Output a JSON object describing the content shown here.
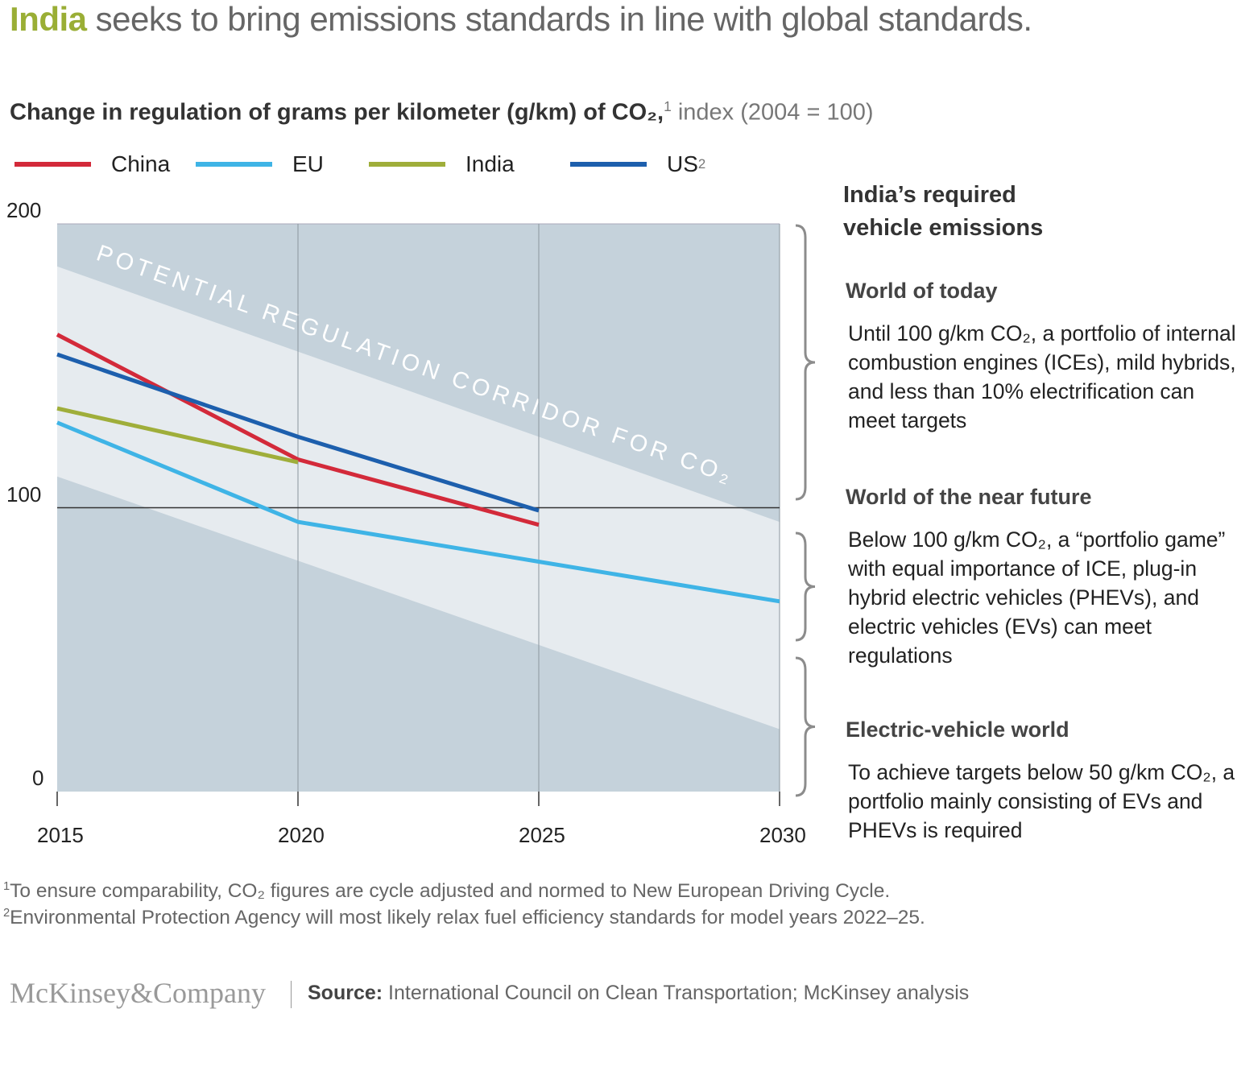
{
  "header": {
    "title_highlight": "India",
    "title_rest": " seeks to bring emissions standards in line with global standards.",
    "subtitle_bold": "Change in regulation of grams per kilometer (g/km) of CO₂,",
    "subtitle_sup": "1",
    "subtitle_light": " index (2004 = 100)"
  },
  "colors": {
    "china": "#d32a3a",
    "eu": "#3fb4e6",
    "india": "#9fae3a",
    "us": "#1d5fad",
    "band_dark": "#c5d2db",
    "band_light": "#e6ebef",
    "highlight": "#9aae35"
  },
  "chart_data": {
    "type": "line",
    "x": [
      2015,
      2020,
      2025,
      2030
    ],
    "xlim": [
      2015,
      2030
    ],
    "ylim": [
      0,
      200
    ],
    "yticks": [
      0,
      100,
      200
    ],
    "xticks": [
      2015,
      2020,
      2025,
      2030
    ],
    "reference_line": 100,
    "series": [
      {
        "name": "China",
        "key": "china",
        "x": [
          2015,
          2020,
          2025
        ],
        "values": [
          161,
          117,
          94
        ]
      },
      {
        "name": "EU",
        "key": "eu",
        "x": [
          2015,
          2020,
          2025,
          2030
        ],
        "values": [
          130,
          95,
          81,
          67
        ]
      },
      {
        "name": "India",
        "key": "india",
        "x": [
          2015,
          2020
        ],
        "values": [
          135,
          116
        ]
      },
      {
        "name": "US",
        "sup": "2",
        "key": "us",
        "x": [
          2015,
          2020,
          2025
        ],
        "values": [
          154,
          125,
          99
        ]
      }
    ],
    "corridor": {
      "label": "POTENTIAL REGULATION CORRIDOR FOR CO₂",
      "upper": [
        185,
        95
      ],
      "lower": [
        111,
        22
      ],
      "x": [
        2015,
        2030
      ]
    },
    "legend_placement": "top"
  },
  "side": {
    "heading": [
      "India’s required",
      "vehicle emissions"
    ],
    "sections": [
      {
        "title": "World of today",
        "text": "Until 100 g/km CO₂, a portfolio of internal combustion engines (ICEs), mild hybrids, and less than 10% electrification can meet targets"
      },
      {
        "title": "World of the near future",
        "text": "Below 100 g/km CO₂, a “portfolio game” with equal importance of ICE, plug-in hybrid electric vehicles (PHEVs), and electric vehicles (EVs) can meet regulations"
      },
      {
        "title": "Electric-vehicle world",
        "text": "To achieve targets below 50 g/km CO₂, a portfolio mainly consisting of EVs and PHEVs is required"
      }
    ]
  },
  "footnotes": [
    {
      "num": "1",
      "text": "To ensure comparability, CO₂ figures are cycle adjusted and normed to New European Driving Cycle."
    },
    {
      "num": "2",
      "text": "Environmental Protection Agency will most likely relax fuel efficiency standards for model years 2022–25."
    }
  ],
  "footer": {
    "logo": "McKinsey&Company",
    "source_label": "Source:",
    "source_text": " International Council on Clean Transportation; McKinsey analysis"
  }
}
